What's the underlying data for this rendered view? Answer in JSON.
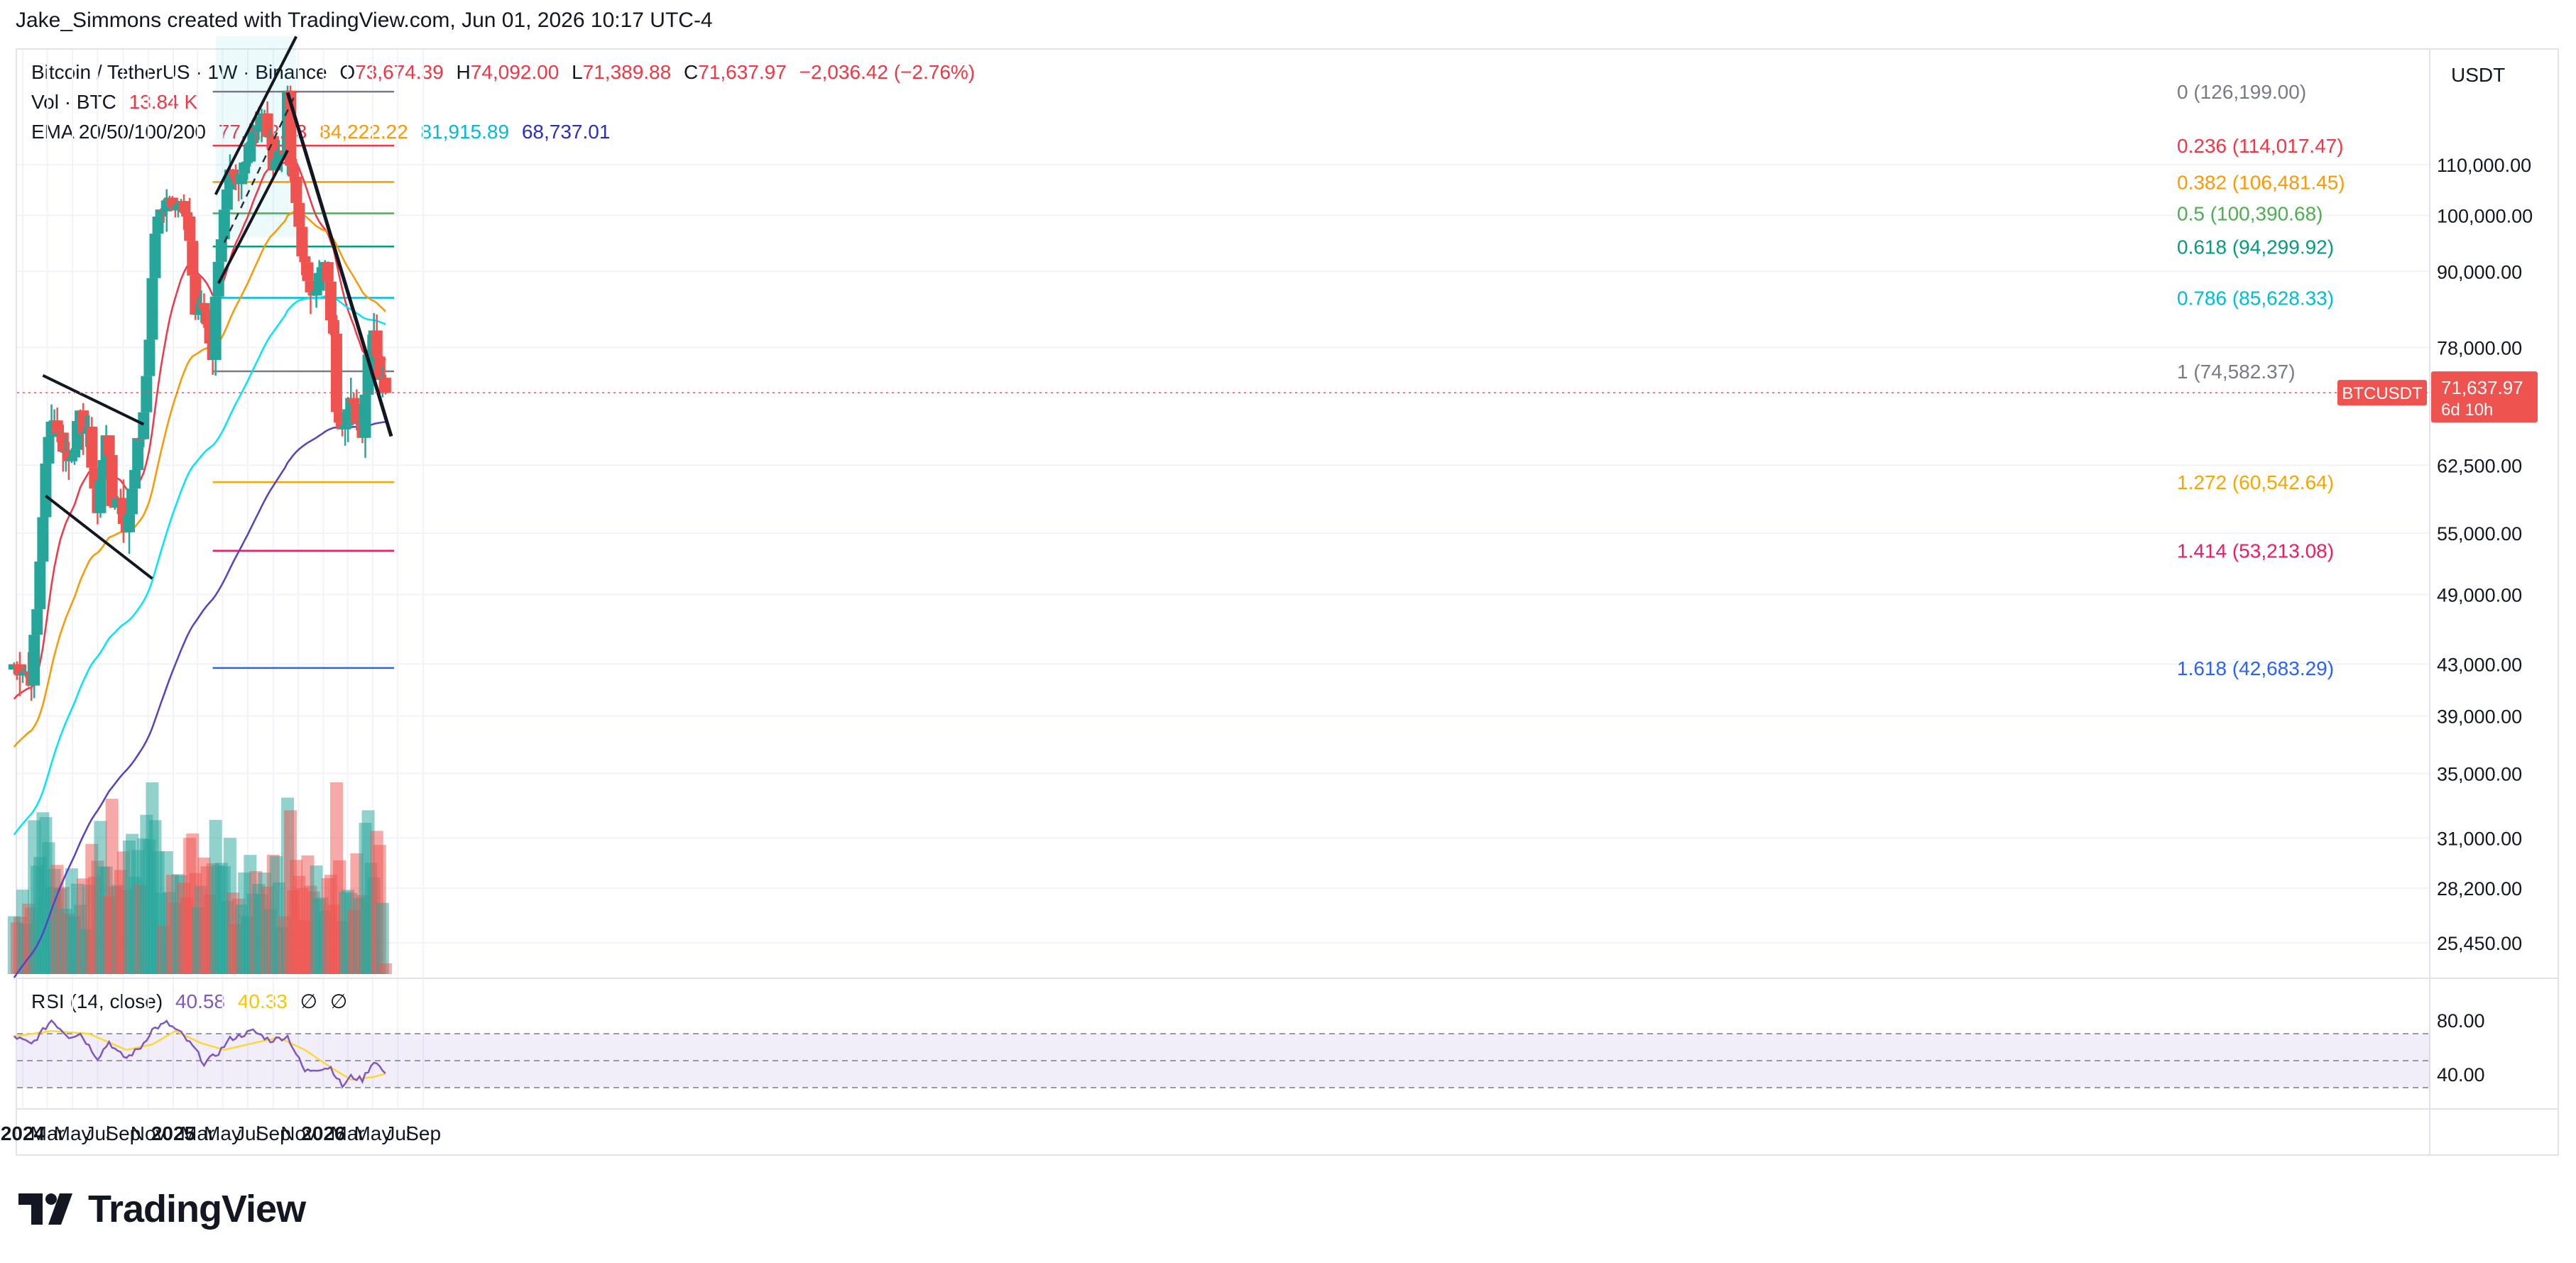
{
  "header": {
    "caption": "Jake_Simmons created with TradingView.com, Jun 01, 2026 10:17 UTC-4"
  },
  "legend": {
    "symbol": "Bitcoin / TetherUS · 1W · Binance",
    "o_label": "O",
    "o": "73,674.39",
    "h_label": "H",
    "h": "74,092.00",
    "l_label": "L",
    "l": "71,389.88",
    "c_label": "C",
    "c": "71,637.97",
    "change": "−2,036.42 (−2.76%)",
    "vol_label": "Vol · BTC",
    "vol": "13.84 K",
    "ema_label": "EMA 20/50/100/200",
    "ema20": "77,172.83",
    "ema50": "84,222.22",
    "ema100": "81,915.89",
    "ema200": "68,737.01",
    "rsi_label": "RSI (14, close)",
    "rsi_value": "40.58",
    "rsi_ma": "40.33",
    "rsi_null1": "∅",
    "rsi_null2": "∅"
  },
  "price_scale": {
    "currency": "USDT"
  },
  "last_price": {
    "symbol": "BTCUSDT",
    "price": "71,637.97",
    "countdown": "6d 10h"
  },
  "colors": {
    "up": "#26a69a",
    "down": "#ef5350",
    "ema20": "#f23645",
    "ema50": "#ff9800",
    "ema100": "#00e5ff",
    "ema200": "#5b3fc4",
    "rsi": "#7e57c2",
    "rsi_ma": "#fdd835"
  },
  "chart_data": {
    "type": "candlestick",
    "timeframe": "1W",
    "y_scale": "log",
    "y_ticks": [
      {
        "value": 110000,
        "label": "110,000.00"
      },
      {
        "value": 100000,
        "label": "100,000.00"
      },
      {
        "value": 90000,
        "label": "90,000.00"
      },
      {
        "value": 78000,
        "label": "78,000.00"
      },
      {
        "value": 62500,
        "label": "62,500.00"
      },
      {
        "value": 55000,
        "label": "55,000.00"
      },
      {
        "value": 49000,
        "label": "49,000.00"
      },
      {
        "value": 43000,
        "label": "43,000.00"
      },
      {
        "value": 39000,
        "label": "39,000.00"
      },
      {
        "value": 35000,
        "label": "35,000.00"
      },
      {
        "value": 31000,
        "label": "31,000.00"
      },
      {
        "value": 28200,
        "label": "28,200.00"
      },
      {
        "value": 25450,
        "label": "25,450.00"
      }
    ],
    "x_ticks": [
      {
        "date": "2024-01-01",
        "label": "2024",
        "bold": true
      },
      {
        "date": "2024-03-01",
        "label": "Mar"
      },
      {
        "date": "2024-05-01",
        "label": "May"
      },
      {
        "date": "2024-07-01",
        "label": "Jul"
      },
      {
        "date": "2024-09-01",
        "label": "Sep"
      },
      {
        "date": "2024-11-01",
        "label": "Nov"
      },
      {
        "date": "2025-01-01",
        "label": "2025",
        "bold": true
      },
      {
        "date": "2025-03-01",
        "label": "Mar"
      },
      {
        "date": "2025-05-01",
        "label": "May"
      },
      {
        "date": "2025-07-01",
        "label": "Jul"
      },
      {
        "date": "2025-09-01",
        "label": "Sep"
      },
      {
        "date": "2025-11-01",
        "label": "Nov"
      },
      {
        "date": "2026-01-01",
        "label": "2026",
        "bold": true
      },
      {
        "date": "2026-03-01",
        "label": "Mar"
      },
      {
        "date": "2026-05-01",
        "label": "May"
      },
      {
        "date": "2026-07-01",
        "label": "Jul"
      },
      {
        "date": "2026-09-01",
        "label": "Sep"
      }
    ],
    "close_anchors": [
      [
        "2023-12-11",
        43000
      ],
      [
        "2024-01-08",
        42500
      ],
      [
        "2024-01-22",
        42000
      ],
      [
        "2024-02-05",
        47500
      ],
      [
        "2024-02-26",
        62000
      ],
      [
        "2024-03-11",
        69000
      ],
      [
        "2024-04-01",
        66000
      ],
      [
        "2024-04-22",
        63000
      ],
      [
        "2024-05-20",
        68000
      ],
      [
        "2024-06-10",
        66000
      ],
      [
        "2024-07-01",
        57000
      ],
      [
        "2024-07-22",
        67000
      ],
      [
        "2024-08-05",
        58000
      ],
      [
        "2024-08-26",
        59000
      ],
      [
        "2024-09-09",
        54500
      ],
      [
        "2024-09-30",
        63000
      ],
      [
        "2024-10-21",
        68000
      ],
      [
        "2024-11-04",
        80000
      ],
      [
        "2024-11-18",
        97000
      ],
      [
        "2024-12-16",
        104000
      ],
      [
        "2025-01-20",
        102000
      ],
      [
        "2025-02-10",
        96000
      ],
      [
        "2025-02-24",
        83000
      ],
      [
        "2025-03-17",
        84000
      ],
      [
        "2025-04-07",
        77000
      ],
      [
        "2025-04-21",
        93000
      ],
      [
        "2025-05-19",
        107000
      ],
      [
        "2025-06-09",
        105000
      ],
      [
        "2025-07-14",
        118000
      ],
      [
        "2025-08-11",
        120000
      ],
      [
        "2025-09-01",
        111000
      ],
      [
        "2025-09-29",
        114000
      ],
      [
        "2025-10-06",
        124000
      ],
      [
        "2025-10-13",
        110000
      ],
      [
        "2025-11-10",
        94000
      ],
      [
        "2025-11-24",
        87000
      ],
      [
        "2025-12-15",
        88000
      ],
      [
        "2026-01-05",
        91000
      ],
      [
        "2026-01-26",
        79000
      ],
      [
        "2026-02-02",
        70000
      ],
      [
        "2026-02-16",
        68000
      ],
      [
        "2026-03-09",
        70000
      ],
      [
        "2026-04-06",
        67000
      ],
      [
        "2026-04-20",
        77000
      ],
      [
        "2026-05-04",
        81000
      ],
      [
        "2026-05-18",
        74000
      ],
      [
        "2026-06-01",
        71637.97
      ]
    ],
    "last_candle": {
      "date": "2026-06-01",
      "open": 73674.39,
      "high": 74092.0,
      "low": 71389.88,
      "close": 71637.97
    },
    "current_price": 71637.97,
    "fib_retracement": [
      {
        "ratio": "0",
        "price": 126199.0,
        "label": "0 (126,199.00)",
        "color": "#787b86"
      },
      {
        "ratio": "0.236",
        "price": 114017.47,
        "label": "0.236 (114,017.47)",
        "color": "#f23645"
      },
      {
        "ratio": "0.382",
        "price": 106481.45,
        "label": "0.382 (106,481.45)",
        "color": "#ff9800"
      },
      {
        "ratio": "0.5",
        "price": 100390.68,
        "label": "0.5 (100,390.68)",
        "color": "#4caf50"
      },
      {
        "ratio": "0.618",
        "price": 94299.92,
        "label": "0.618 (94,299.92)",
        "color": "#089981"
      },
      {
        "ratio": "0.786",
        "price": 85628.33,
        "label": "0.786 (85,628.33)",
        "color": "#00bcd4"
      },
      {
        "ratio": "1",
        "price": 74582.37,
        "label": "1 (74,582.37)",
        "color": "#787b86"
      },
      {
        "ratio": "1.272",
        "price": 60542.64,
        "label": "1.272 (60,542.64)",
        "color": "#f7a600"
      },
      {
        "ratio": "1.414",
        "price": 53213.08,
        "label": "1.414 (53,213.08)",
        "color": "#e91e63"
      },
      {
        "ratio": "1.618",
        "price": 42683.29,
        "label": "1.618 (42,683.29)",
        "color": "#2962ff"
      }
    ],
    "trendlines": [
      {
        "name": "channel-upper-2024",
        "from": [
          "2024-02-19",
          74000
        ],
        "to": [
          "2024-10-21",
          67500
        ]
      },
      {
        "name": "channel-lower-2024",
        "from": [
          "2024-02-26",
          59000
        ],
        "to": [
          "2024-11-11",
          50500
        ]
      },
      {
        "name": "rising-channel-upper",
        "from": [
          "2025-04-14",
          104000
        ],
        "to": [
          "2025-10-27",
          140000
        ]
      },
      {
        "name": "rising-channel-lower",
        "from": [
          "2025-04-21",
          88000
        ],
        "to": [
          "2025-10-06",
          113000
        ]
      },
      {
        "name": "rising-channel-mid",
        "from": [
          "2025-05-05",
          95000
        ],
        "to": [
          "2025-10-27",
          126000
        ]
      },
      {
        "name": "downtrend-2025",
        "from": [
          "2025-10-06",
          126000
        ],
        "to": [
          "2026-06-15",
          66000
        ]
      }
    ],
    "rsi": {
      "levels": [
        70,
        50,
        30
      ],
      "scale_ticks": [
        80,
        40
      ],
      "range": [
        15,
        85
      ],
      "value": 40.58,
      "anchors": [
        [
          "2023-12-11",
          68
        ],
        [
          "2024-01-22",
          62
        ],
        [
          "2024-03-11",
          80
        ],
        [
          "2024-04-22",
          68
        ],
        [
          "2024-05-20",
          70
        ],
        [
          "2024-07-01",
          52
        ],
        [
          "2024-07-29",
          64
        ],
        [
          "2024-08-19",
          56
        ],
        [
          "2024-09-09",
          52
        ],
        [
          "2024-10-14",
          60
        ],
        [
          "2024-11-11",
          73
        ],
        [
          "2024-12-16",
          78
        ],
        [
          "2025-01-20",
          70
        ],
        [
          "2025-02-24",
          58
        ],
        [
          "2025-03-17",
          48
        ],
        [
          "2025-04-21",
          56
        ],
        [
          "2025-05-19",
          66
        ],
        [
          "2025-07-14",
          72
        ],
        [
          "2025-08-25",
          65
        ],
        [
          "2025-10-06",
          68
        ],
        [
          "2025-11-17",
          42
        ],
        [
          "2025-12-15",
          44
        ],
        [
          "2026-01-19",
          45
        ],
        [
          "2026-02-16",
          31
        ],
        [
          "2026-03-09",
          38
        ],
        [
          "2026-04-06",
          36
        ],
        [
          "2026-05-04",
          50
        ],
        [
          "2026-06-01",
          40.58
        ]
      ],
      "ma_anchors": [
        [
          "2023-12-11",
          68
        ],
        [
          "2024-03-11",
          72
        ],
        [
          "2024-06-10",
          70
        ],
        [
          "2024-09-09",
          58
        ],
        [
          "2024-11-11",
          62
        ],
        [
          "2025-01-06",
          72
        ],
        [
          "2025-03-10",
          63
        ],
        [
          "2025-05-05",
          58
        ],
        [
          "2025-07-14",
          63
        ],
        [
          "2025-09-15",
          67
        ],
        [
          "2025-11-17",
          58
        ],
        [
          "2026-01-19",
          45
        ],
        [
          "2026-03-09",
          36
        ],
        [
          "2026-05-04",
          38
        ],
        [
          "2026-06-01",
          40.33
        ]
      ]
    }
  }
}
